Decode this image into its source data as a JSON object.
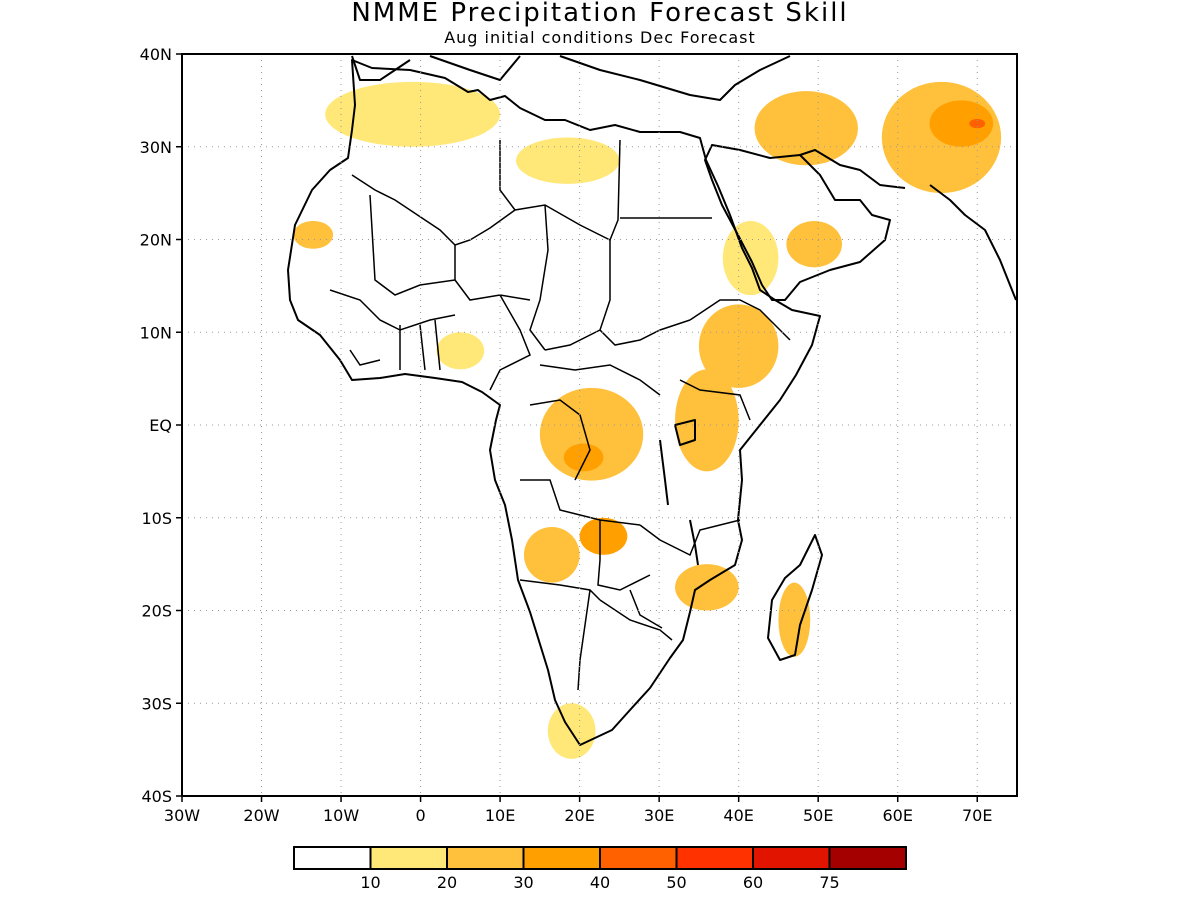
{
  "title": "NMME Precipitation Forecast Skill",
  "subtitle": "Aug initial conditions  Dec Forecast",
  "map": {
    "lon_range": [
      -30,
      75
    ],
    "lat_range": [
      -40,
      40
    ],
    "grid": true,
    "x_ticks": [
      {
        "value": -30,
        "label": "30W"
      },
      {
        "value": -20,
        "label": "20W"
      },
      {
        "value": -10,
        "label": "10W"
      },
      {
        "value": 0,
        "label": "0"
      },
      {
        "value": 10,
        "label": "10E"
      },
      {
        "value": 20,
        "label": "20E"
      },
      {
        "value": 30,
        "label": "30E"
      },
      {
        "value": 40,
        "label": "40E"
      },
      {
        "value": 50,
        "label": "50E"
      },
      {
        "value": 60,
        "label": "60E"
      },
      {
        "value": 70,
        "label": "70E"
      }
    ],
    "y_ticks": [
      {
        "value": 40,
        "label": "40N"
      },
      {
        "value": 30,
        "label": "30N"
      },
      {
        "value": 20,
        "label": "20N"
      },
      {
        "value": 10,
        "label": "10N"
      },
      {
        "value": 0,
        "label": "EQ"
      },
      {
        "value": -10,
        "label": "10S"
      },
      {
        "value": -20,
        "label": "20S"
      },
      {
        "value": -30,
        "label": "30S"
      },
      {
        "value": -40,
        "label": "40S"
      }
    ]
  },
  "colorbar": {
    "colors": [
      "#ffffff",
      "#ffe878",
      "#ffc03c",
      "#ffa000",
      "#ff6000",
      "#ff3200",
      "#e11400",
      "#a50000"
    ],
    "labels": [
      "10",
      "20",
      "30",
      "40",
      "50",
      "60",
      "75"
    ]
  },
  "chart_data": {
    "type": "heatmap",
    "title": "NMME Precipitation Forecast Skill",
    "subtitle": "Aug initial conditions  Dec Forecast",
    "units_levels": [
      10,
      20,
      30,
      40,
      50,
      60,
      75
    ],
    "regions": [
      {
        "lon": [
          -12,
          10
        ],
        "lat": [
          30,
          37
        ],
        "level": 10
      },
      {
        "lon": [
          12,
          25
        ],
        "lat": [
          26,
          31
        ],
        "level": 10
      },
      {
        "lon": [
          -16,
          -11
        ],
        "lat": [
          19,
          22
        ],
        "level": 20
      },
      {
        "lon": [
          42,
          55
        ],
        "lat": [
          28,
          36
        ],
        "level": 20
      },
      {
        "lon": [
          58,
          73
        ],
        "lat": [
          25,
          37
        ],
        "level": 20
      },
      {
        "lon": [
          64,
          72
        ],
        "lat": [
          30,
          35
        ],
        "level": 30
      },
      {
        "lon": [
          69,
          71
        ],
        "lat": [
          32,
          33
        ],
        "level": 40
      },
      {
        "lon": [
          35,
          45
        ],
        "lat": [
          4,
          13
        ],
        "level": 20
      },
      {
        "lon": [
          38,
          45
        ],
        "lat": [
          14,
          22
        ],
        "level": 10
      },
      {
        "lon": [
          46,
          53
        ],
        "lat": [
          17,
          22
        ],
        "level": 20
      },
      {
        "lon": [
          32,
          40
        ],
        "lat": [
          -5,
          6
        ],
        "level": 20
      },
      {
        "lon": [
          15,
          28
        ],
        "lat": [
          -6,
          4
        ],
        "level": 20
      },
      {
        "lon": [
          18,
          23
        ],
        "lat": [
          -5,
          -2
        ],
        "level": 30
      },
      {
        "lon": [
          20,
          26
        ],
        "lat": [
          -14,
          -10
        ],
        "level": 30
      },
      {
        "lon": [
          13,
          20
        ],
        "lat": [
          -17,
          -11
        ],
        "level": 20
      },
      {
        "lon": [
          32,
          40
        ],
        "lat": [
          -20,
          -15
        ],
        "level": 20
      },
      {
        "lon": [
          45,
          49
        ],
        "lat": [
          -25,
          -17
        ],
        "level": 20
      },
      {
        "lon": [
          2,
          8
        ],
        "lat": [
          6,
          10
        ],
        "level": 10
      },
      {
        "lon": [
          16,
          22
        ],
        "lat": [
          -36,
          -30
        ],
        "level": 10
      }
    ]
  }
}
